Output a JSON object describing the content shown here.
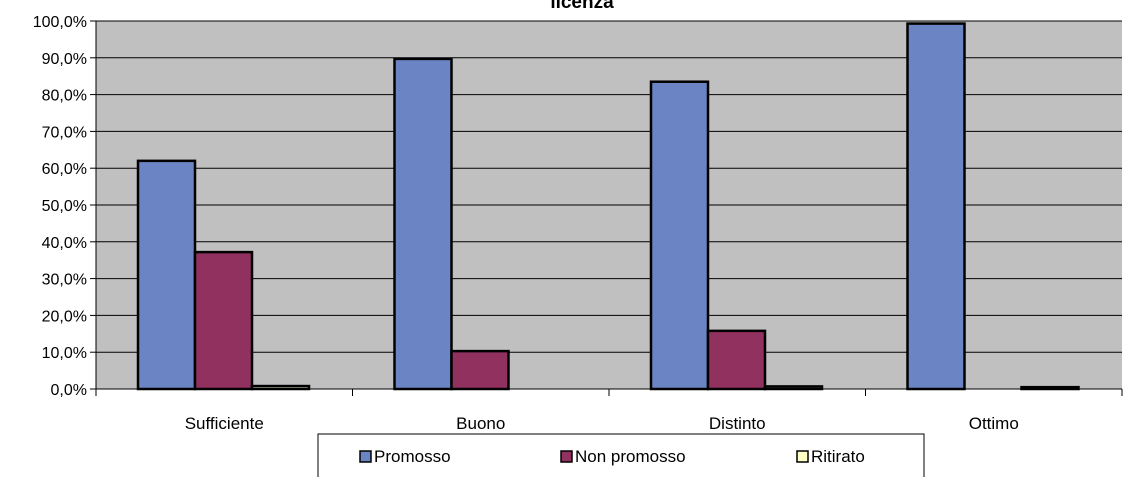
{
  "chart_data": {
    "type": "bar",
    "title": "licenza",
    "categories": [
      "Sufficiente",
      "Buono",
      "Distinto",
      "Ottimo"
    ],
    "series": [
      {
        "name": "Promosso",
        "values": [
          62.0,
          89.7,
          83.5,
          99.3
        ],
        "color": "#6b84c4"
      },
      {
        "name": "Non promosso",
        "values": [
          37.2,
          10.3,
          15.8,
          0.0
        ],
        "color": "#913160"
      },
      {
        "name": "Ritirato",
        "values": [
          0.8,
          0.0,
          0.7,
          0.5
        ],
        "color": "#ffffc6"
      }
    ],
    "ylim": [
      0,
      100
    ],
    "yticks": [
      "0,0%",
      "10,0%",
      "20,0%",
      "30,0%",
      "40,0%",
      "50,0%",
      "60,0%",
      "70,0%",
      "80,0%",
      "90,0%",
      "100,0%"
    ],
    "xlabel": "",
    "ylabel": "",
    "grid": true,
    "plot_background": "#c0c0c0",
    "legend_position": "bottom"
  }
}
